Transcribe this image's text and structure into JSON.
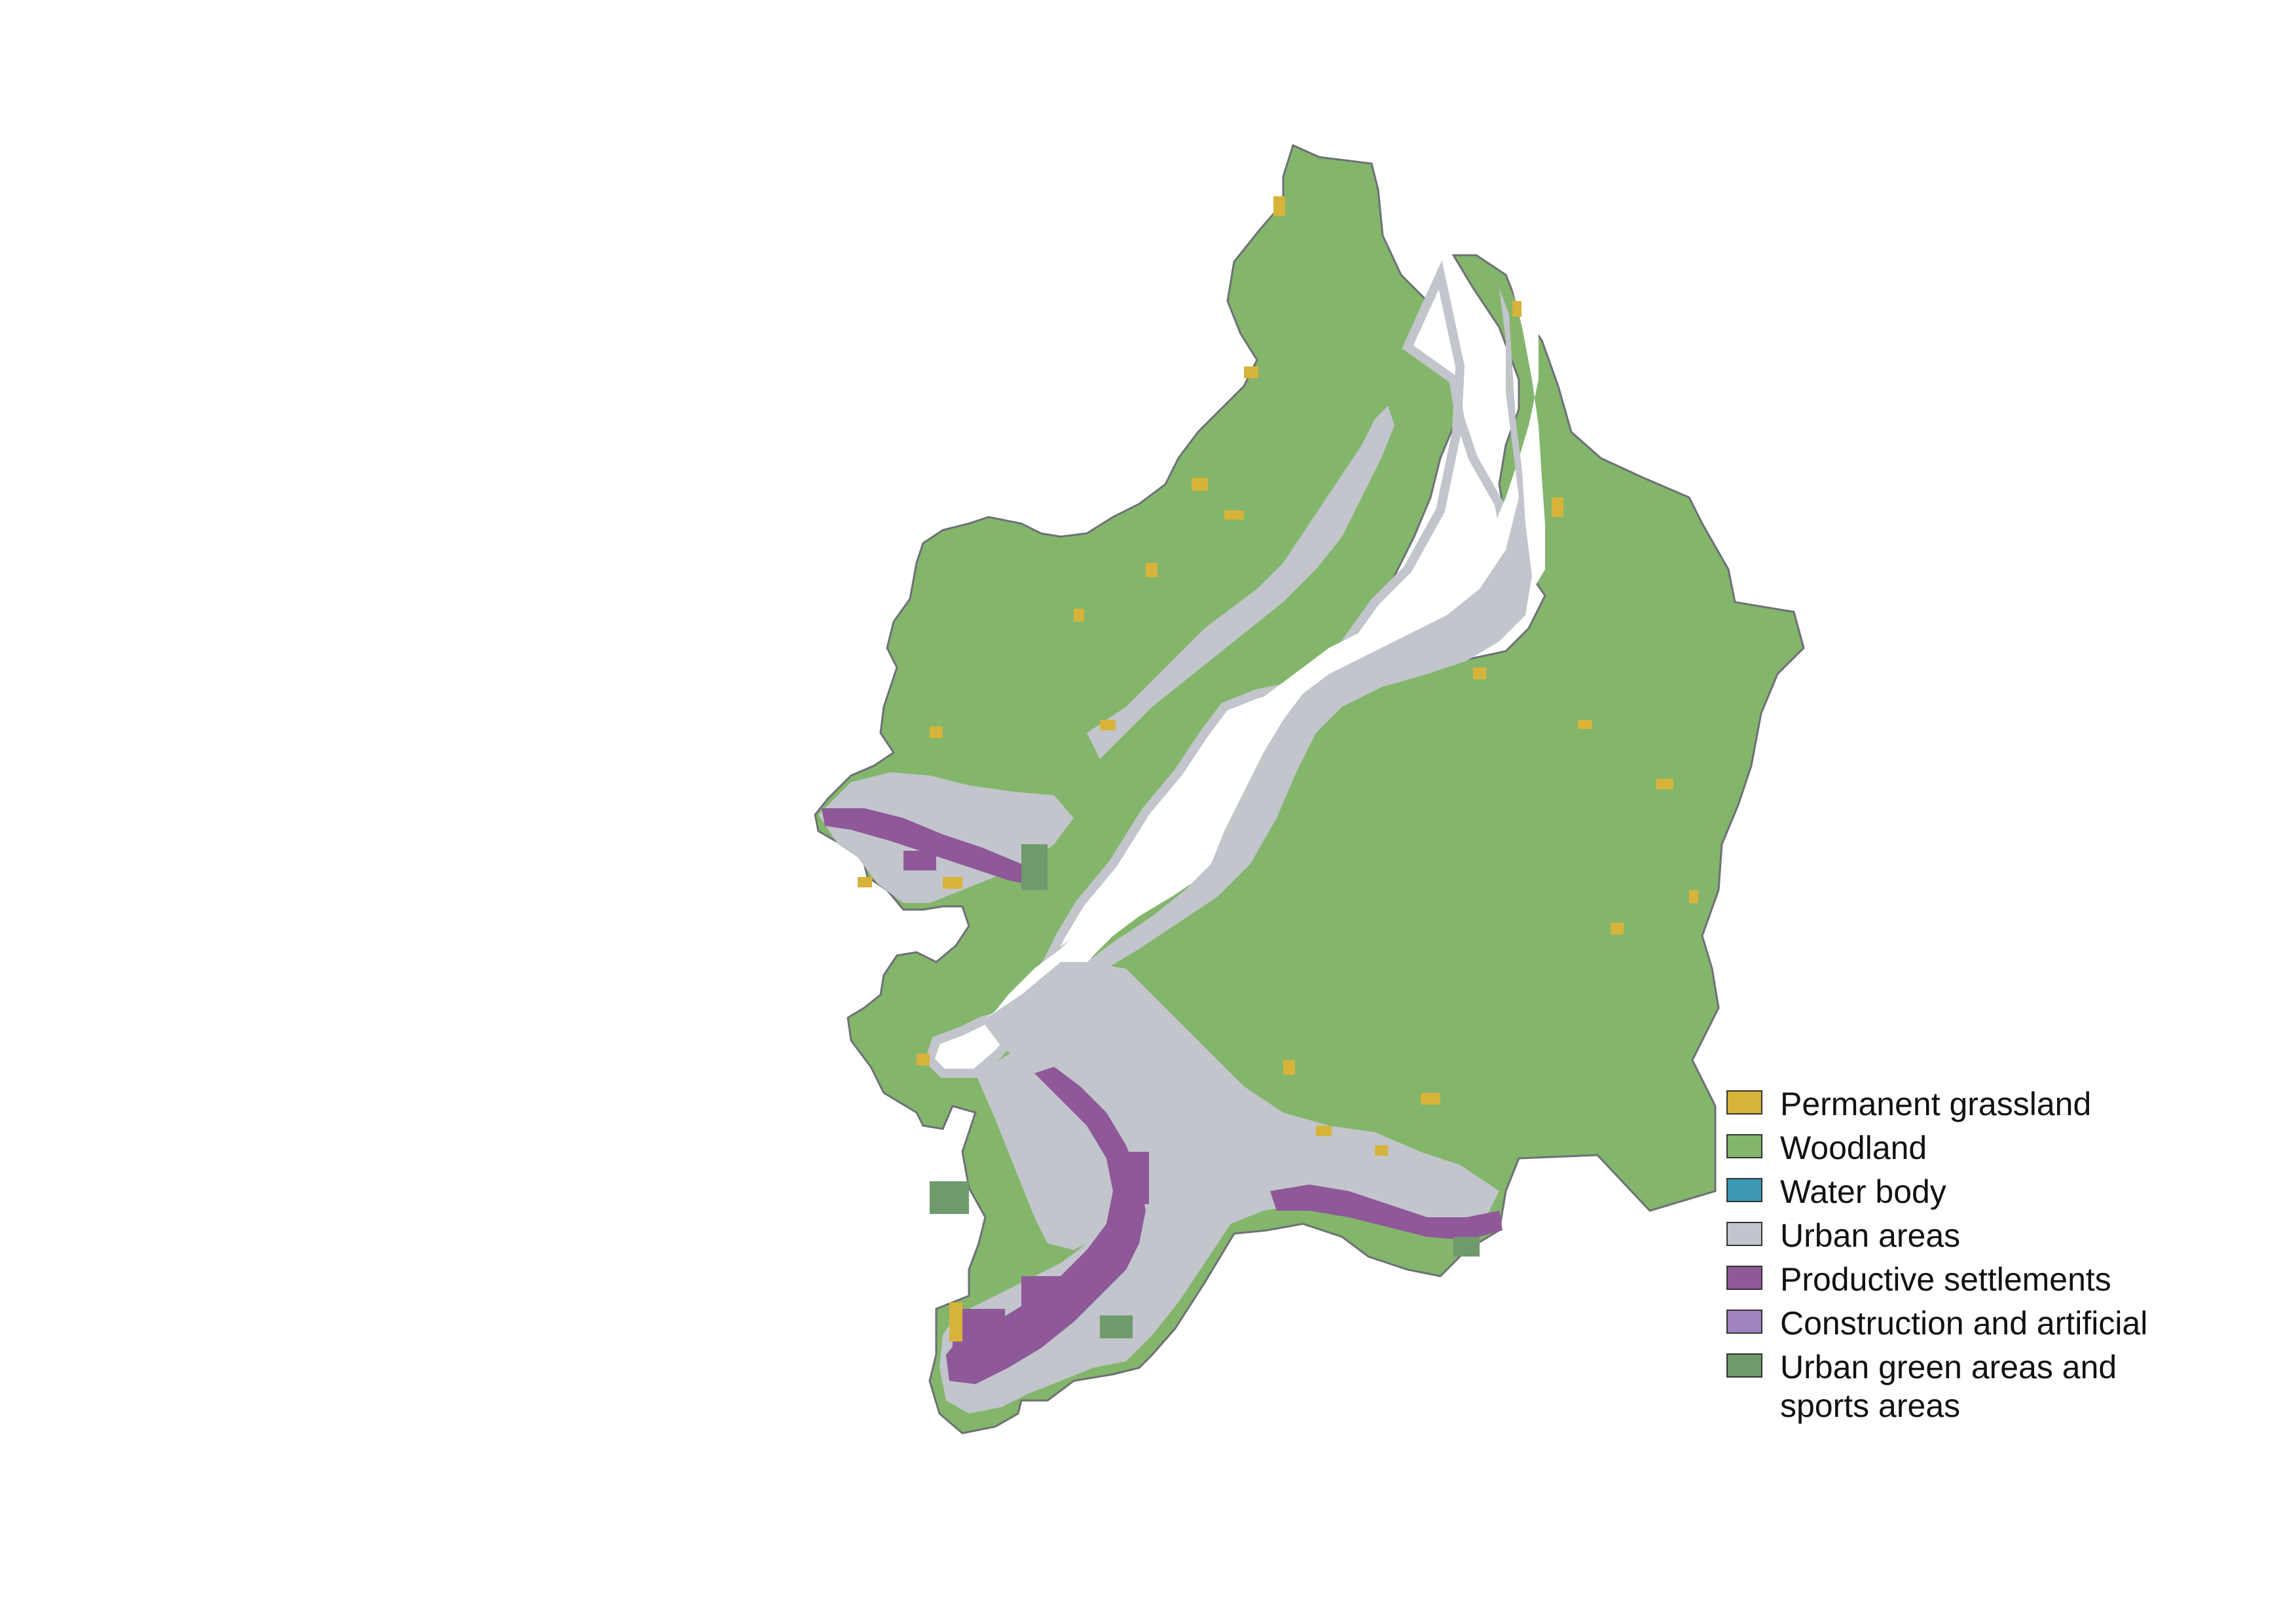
{
  "legend": {
    "items": [
      {
        "label": "Permanent grassland",
        "color": "#d8b33a"
      },
      {
        "label": "Woodland",
        "color": "#83b56b"
      },
      {
        "label": "Water body",
        "color": "#3c98b4"
      },
      {
        "label": "Urban areas",
        "color": "#c2c5cb"
      },
      {
        "label": "Productive settlements",
        "color": "#8e5899"
      },
      {
        "label": "Construction and artificial",
        "color": "#a183c0"
      },
      {
        "label": "Urban green areas and\nsports areas",
        "color": "#709a6c"
      }
    ]
  }
}
